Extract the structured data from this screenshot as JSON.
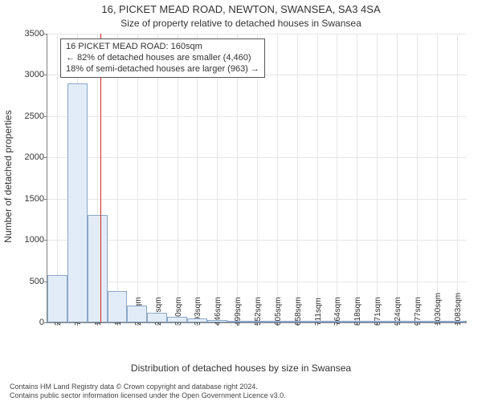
{
  "title": "16, PICKET MEAD ROAD, NEWTON, SWANSEA, SA3 4SA",
  "subtitle": "Size of property relative to detached houses in Swansea",
  "ylabel": "Number of detached properties",
  "xlabel": "Distribution of detached houses by size in Swansea",
  "annotation": {
    "line1": "16 PICKET MEAD ROAD: 160sqm",
    "line2": "← 82% of detached houses are smaller (4,460)",
    "line3": "18% of semi-detached houses are larger (963) →"
  },
  "chart": {
    "type": "histogram",
    "background_color": "#ffffff",
    "grid_color": "#e6e6e6",
    "axis_color": "#808080",
    "bar_fill": "#e2ecf8",
    "bar_border": "#8aa8c8",
    "marker_color": "#d62728",
    "ylim": [
      0,
      3500
    ],
    "ytick_step": 500,
    "xticks": [
      "21sqm",
      "74sqm",
      "127sqm",
      "180sqm",
      "233sqm",
      "287sqm",
      "340sqm",
      "393sqm",
      "446sqm",
      "499sqm",
      "552sqm",
      "605sqm",
      "658sqm",
      "711sqm",
      "764sqm",
      "818sqm",
      "871sqm",
      "924sqm",
      "977sqm",
      "1030sqm",
      "1083sqm"
    ],
    "values": [
      570,
      2900,
      1300,
      380,
      200,
      120,
      70,
      50,
      30,
      22,
      16,
      14,
      10,
      8,
      6,
      6,
      5,
      4,
      4,
      3,
      3
    ],
    "marker_after_index": 2,
    "title_fontsize": 13,
    "label_fontsize": 12,
    "tick_fontsize": 11
  },
  "footer": {
    "line1": "Contains HM Land Registry data © Crown copyright and database right 2024.",
    "line2": "Contains public sector information licensed under the Open Government Licence v3.0."
  }
}
